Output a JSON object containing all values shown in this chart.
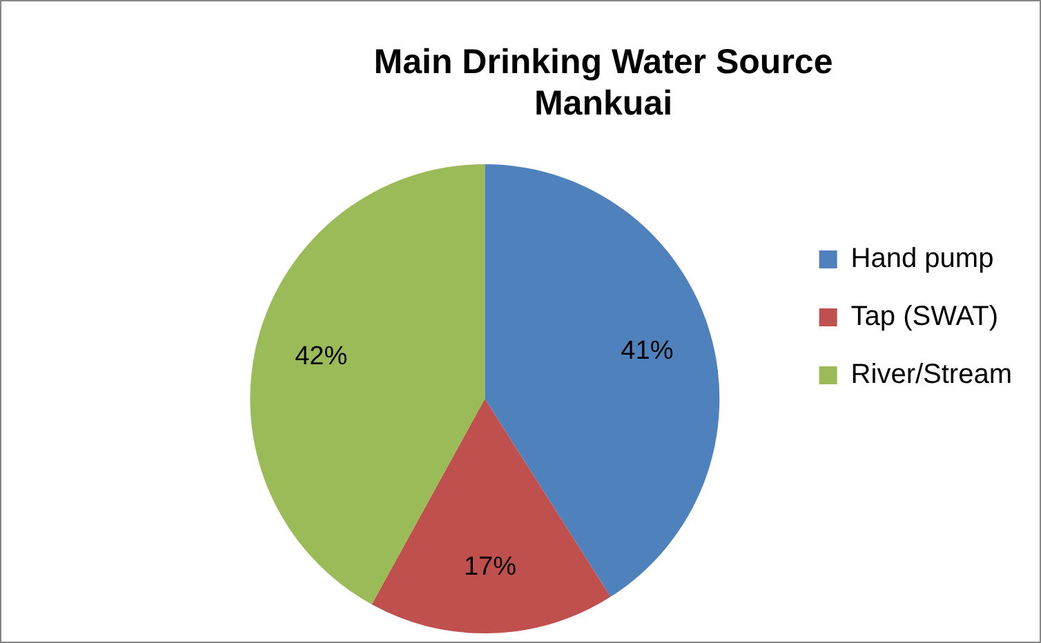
{
  "chart_data": {
    "type": "pie",
    "title": "Main Drinking Water Source\nMankuai",
    "categories": [
      "Hand pump",
      "Tap (SWAT)",
      "River/Stream"
    ],
    "values": [
      41,
      17,
      42
    ],
    "colors": [
      "#4f81bd",
      "#c0504d",
      "#9bbb59"
    ],
    "value_labels": [
      "41%",
      "17%",
      "42%"
    ],
    "legend": "right"
  }
}
